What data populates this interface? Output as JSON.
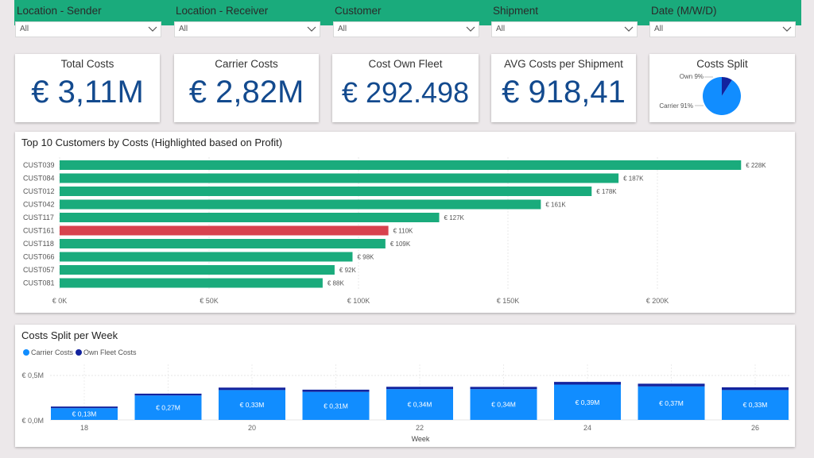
{
  "filters": [
    {
      "label": "Location - Sender",
      "value": "All"
    },
    {
      "label": "Location - Receiver",
      "value": "All"
    },
    {
      "label": "Customer",
      "value": "All"
    },
    {
      "label": "Shipment",
      "value": "All"
    },
    {
      "label": "Date (M/W/D)",
      "value": "All"
    }
  ],
  "kpis": [
    {
      "title": "Total Costs",
      "value": "€ 3,11M"
    },
    {
      "title": "Carrier Costs",
      "value": "€ 2,82M"
    },
    {
      "title": "Cost Own Fleet",
      "value": "€ 292.498"
    },
    {
      "title": "AVG Costs per Shipment",
      "value": "€ 918,41"
    }
  ],
  "costs_split": {
    "title": "Costs Split",
    "own_label": "Own 9%",
    "carrier_label": "Carrier 91%"
  },
  "colors": {
    "green": "#1aab7c",
    "red": "#d8424e",
    "carrier": "#118dff",
    "own": "#12239e",
    "kpi_text": "#134a8e"
  },
  "icons": {
    "dropdown": "chevron-down-icon",
    "legend_carrier": "circle-icon",
    "legend_own": "circle-icon"
  },
  "top_customers": {
    "title": "Top 10 Customers by Costs (Highlighted based on Profit)",
    "x_ticks": [
      "€ 0K",
      "€ 50K",
      "€ 100K",
      "€ 150K",
      "€ 200K"
    ]
  },
  "weekly": {
    "title": "Costs Split per Week",
    "legend": [
      "Carrier Costs",
      "Own Fleet Costs"
    ],
    "y_ticks": [
      "€ 0,5M",
      "€ 0,0M"
    ],
    "x_ticks": [
      "18",
      "20",
      "22",
      "24",
      "26"
    ],
    "xlabel": "Week"
  },
  "chart_data": [
    {
      "type": "pie",
      "categories": [
        "Own",
        "Carrier"
      ],
      "values": [
        9,
        91
      ],
      "unit": "%"
    },
    {
      "type": "bar",
      "orientation": "horizontal",
      "title": "Top 10 Customers by Costs (Highlighted based on Profit)",
      "categories": [
        "CUST039",
        "CUST084",
        "CUST012",
        "CUST042",
        "CUST117",
        "CUST161",
        "CUST118",
        "CUST066",
        "CUST057",
        "CUST081"
      ],
      "values": [
        228,
        187,
        178,
        161,
        127,
        110,
        109,
        98,
        92,
        88
      ],
      "labels": [
        "€ 228K",
        "€ 187K",
        "€ 178K",
        "€ 161K",
        "€ 127K",
        "€ 110K",
        "€ 109K",
        "€ 98K",
        "€ 92K",
        "€ 88K"
      ],
      "highlight": [
        "green",
        "green",
        "green",
        "green",
        "green",
        "red",
        "green",
        "green",
        "green",
        "green"
      ],
      "xlim": [
        0,
        240
      ],
      "unit": "€ K"
    },
    {
      "type": "bar",
      "stacked": true,
      "title": "Costs Split per Week",
      "xlabel": "Week",
      "x": [
        18,
        19,
        20,
        21,
        22,
        23,
        24,
        25,
        26
      ],
      "series": [
        {
          "name": "Carrier Costs",
          "values": [
            0.13,
            0.27,
            0.33,
            0.31,
            0.34,
            0.34,
            0.39,
            0.37,
            0.33
          ]
        },
        {
          "name": "Own Fleet Costs",
          "values": [
            0.006,
            0.02,
            0.027,
            0.024,
            0.026,
            0.025,
            0.03,
            0.03,
            0.03
          ]
        }
      ],
      "labels": [
        "€ 0,13M",
        "€ 0,27M",
        "€ 0,33M",
        "€ 0,31M",
        "€ 0,34M",
        "€ 0,34M",
        "€ 0,39M",
        "€ 0,37M",
        "€ 0,33M"
      ],
      "ylim": [
        0,
        0.55
      ],
      "unit": "€ M"
    }
  ]
}
